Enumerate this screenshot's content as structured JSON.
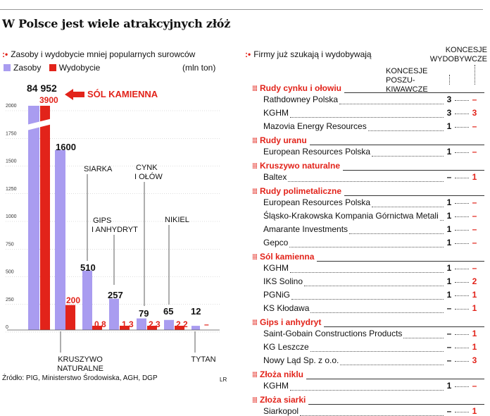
{
  "title": "W Polsce jest wiele atrakcyjnych złóż",
  "left_subtitle": "Zasoby i wydobycie mniej popularnych surowców",
  "right_subtitle": "Firmy już szukają i wydobywają",
  "legend": {
    "zasoby": "Zasoby",
    "wydobycie": "Wydobycie"
  },
  "unit": "(mln ton)",
  "colors": {
    "zasoby": "#a99cf0",
    "wydobycie": "#e2231a"
  },
  "chart_data": {
    "type": "bar",
    "categories": [
      "SÓL KAMIENNA",
      "KRUSZYWO NATURALNE",
      "SIARKA",
      "GIPS I ANHYDRYT",
      "CYNK I OŁÓW",
      "NIKIEL",
      "TYTAN"
    ],
    "series": [
      {
        "name": "Zasoby",
        "values": [
          84952,
          1600,
          510,
          257,
          79,
          65,
          12
        ],
        "labels": [
          "84 952",
          "1600",
          "510",
          "257",
          "79",
          "65",
          "12"
        ]
      },
      {
        "name": "Wydobycie",
        "values": [
          3900,
          200,
          0.8,
          1.3,
          2.3,
          2.2,
          0
        ],
        "labels": [
          "3900",
          "200",
          "0,8",
          "1,3",
          "2,3",
          "2,2",
          "–"
        ]
      }
    ],
    "yticks": [
      "0",
      "250",
      "500",
      "750",
      "1000",
      "1250",
      "1500",
      "1750",
      "2000"
    ],
    "ylim": [
      0,
      2000
    ],
    "axis_break": true
  },
  "source": "Źródło: PIG, Ministerstwo Środowiska, AGH, DGP",
  "author": "LR",
  "right_headers": {
    "col1": "KONCESJE POSZU-\nKIWAWCZE",
    "col2": "KONCESJE\nWYDOBYWCZE"
  },
  "sections": [
    {
      "name": "Rudy cynku i ołowiu",
      "companies": [
        {
          "name": "Rathdowney Polska",
          "a": "3",
          "b": "–"
        },
        {
          "name": "KGHM",
          "a": "3",
          "b": "3"
        },
        {
          "name": "Mazovia Energy Resources",
          "a": "1",
          "b": "–"
        }
      ]
    },
    {
      "name": "Rudy uranu",
      "companies": [
        {
          "name": "European Resources Polska",
          "a": "1",
          "b": "–"
        }
      ]
    },
    {
      "name": "Kruszywo naturalne",
      "companies": [
        {
          "name": "Baltex",
          "a": "–",
          "b": "1"
        }
      ]
    },
    {
      "name": "Rudy polimetaliczne",
      "companies": [
        {
          "name": "European Resources Polska",
          "a": "1",
          "b": "–"
        },
        {
          "name": "Śląsko-Krakowska Kompania Górnictwa Metali",
          "a": "1",
          "b": "–"
        },
        {
          "name": "Amarante Investments",
          "a": "1",
          "b": "–"
        },
        {
          "name": "Gepco",
          "a": "1",
          "b": "–"
        }
      ]
    },
    {
      "name": "Sól kamienna",
      "companies": [
        {
          "name": "KGHM",
          "a": "1",
          "b": "–"
        },
        {
          "name": "IKS Solino",
          "a": "1",
          "b": "2"
        },
        {
          "name": "PGNiG",
          "a": "1",
          "b": "1"
        },
        {
          "name": "KS Kłodawa",
          "a": "–",
          "b": "1"
        }
      ]
    },
    {
      "name": "Gips i anhydryt",
      "companies": [
        {
          "name": "Saint-Gobain Constructions Products",
          "a": "–",
          "b": "1"
        },
        {
          "name": "KG Leszcze",
          "a": "–",
          "b": "1"
        },
        {
          "name": "Nowy Ląd Sp. z o.o.",
          "a": "–",
          "b": "3"
        }
      ]
    },
    {
      "name": "Złoża niklu",
      "companies": [
        {
          "name": "KGHM",
          "a": "1",
          "b": "–"
        }
      ]
    },
    {
      "name": "Złoża siarki",
      "companies": [
        {
          "name": "Siarkopol",
          "a": "–",
          "b": "1"
        }
      ]
    }
  ]
}
